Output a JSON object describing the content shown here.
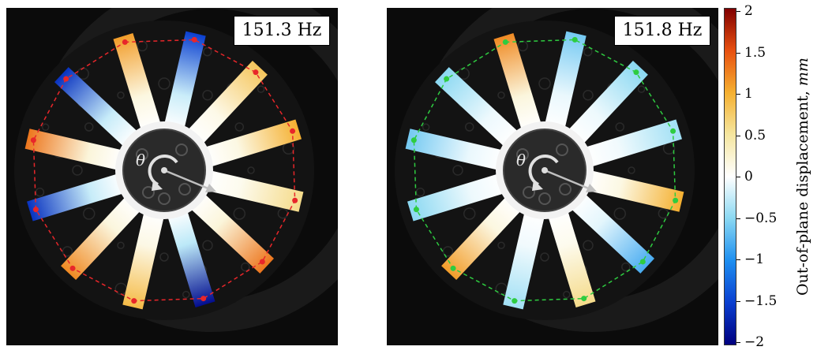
{
  "panels": [
    {
      "frequency_label": "151.3 Hz",
      "theta_label": "θ",
      "polygon_color": "#e8262a",
      "spoke_displacements": [
        1.1,
        -1.5,
        0.8,
        1.0,
        0.6,
        1.3,
        -1.9,
        0.9,
        1.2,
        -1.6,
        1.3,
        -1.6
      ]
    },
    {
      "frequency_label": "151.8 Hz",
      "theta_label": "θ",
      "polygon_color": "#2ecc40",
      "spoke_displacements": [
        1.2,
        -0.6,
        -0.5,
        -0.4,
        1.0,
        -0.8,
        0.6,
        -0.4,
        1.1,
        -0.5,
        -0.6,
        -0.5
      ]
    }
  ],
  "colorbar": {
    "title": "Out-of-plane displacement,",
    "unit": "mm",
    "ticks": [
      "2",
      "1.5",
      "1",
      "0.5",
      "0",
      "−0.5",
      "−1",
      "−1.5",
      "−2"
    ],
    "min": -2,
    "max": 2,
    "colors": [
      "#00007f",
      "#0a3fd0",
      "#1e8ff0",
      "#8ad8f2",
      "#ffffff",
      "#f5e6a0",
      "#f5b030",
      "#e85010",
      "#800000"
    ]
  }
}
